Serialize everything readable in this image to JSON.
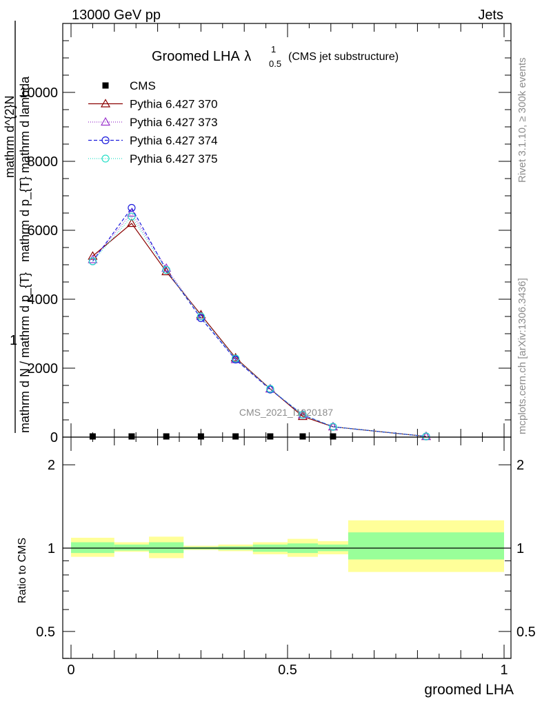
{
  "header": {
    "left": "13000 GeV pp",
    "right": "Jets"
  },
  "side_text": {
    "rivet": "Rivet 3.1.10, ≥ 300k events",
    "site": "mcplots.cern.ch [arXiv:1306.3436]"
  },
  "main_panel": {
    "title_main": "Groomed LHA",
    "title_lambda": "λ",
    "title_sup": "1",
    "title_sub": "0.5",
    "title_note": "(CMS jet substructure)",
    "watermark": "CMS_2021_I1920187",
    "ylabel_frac_one": "1",
    "ylabel_num": "mathrm d^{2}N",
    "ylabel_den": "mathrm d p_{T} mathrm d lambda",
    "ylabel_left": "mathrm d N / mathrm d p_{T}",
    "yticks": [
      "0",
      "2000",
      "4000",
      "6000",
      "8000",
      "10000"
    ]
  },
  "ratio_panel": {
    "ylabel": "Ratio to CMS",
    "yticks": [
      "0.5",
      "1",
      "2"
    ]
  },
  "x_axis": {
    "label": "groomed LHA",
    "ticks": [
      "0",
      "0.5",
      "1"
    ]
  },
  "legend": [
    {
      "label": "CMS"
    },
    {
      "label": "Pythia 6.427 370"
    },
    {
      "label": "Pythia 6.427 373"
    },
    {
      "label": "Pythia 6.427 374"
    },
    {
      "label": "Pythia 6.427 375"
    }
  ],
  "chart_data": {
    "type": "line",
    "x_label": "groomed LHA",
    "xlim": [
      0,
      1
    ],
    "ylim": [
      0,
      12000
    ],
    "ratio_ylim": [
      0.4,
      2.3
    ],
    "ratio_log_scale": true,
    "x": [
      0.05,
      0.14,
      0.22,
      0.3,
      0.38,
      0.46,
      0.535,
      0.605,
      0.82
    ],
    "cms": {
      "name": "CMS",
      "color": "#000000",
      "values": [
        10,
        10,
        10,
        10,
        10,
        10,
        10,
        10,
        10
      ],
      "ratio_bands": [
        {
          "x0": 0.0,
          "x1": 0.1,
          "yellow": [
            0.93,
            1.09
          ],
          "green": [
            0.96,
            1.05
          ]
        },
        {
          "x0": 0.1,
          "x1": 0.18,
          "yellow": [
            0.97,
            1.05
          ],
          "green": [
            0.98,
            1.03
          ]
        },
        {
          "x0": 0.18,
          "x1": 0.26,
          "yellow": [
            0.92,
            1.1
          ],
          "green": [
            0.96,
            1.05
          ]
        },
        {
          "x0": 0.26,
          "x1": 0.34,
          "yellow": [
            0.985,
            1.02
          ],
          "green": [
            0.99,
            1.01
          ]
        },
        {
          "x0": 0.34,
          "x1": 0.42,
          "yellow": [
            0.975,
            1.03
          ],
          "green": [
            0.985,
            1.015
          ]
        },
        {
          "x0": 0.42,
          "x1": 0.5,
          "yellow": [
            0.95,
            1.05
          ],
          "green": [
            0.97,
            1.03
          ]
        },
        {
          "x0": 0.5,
          "x1": 0.57,
          "yellow": [
            0.93,
            1.08
          ],
          "green": [
            0.96,
            1.04
          ]
        },
        {
          "x0": 0.57,
          "x1": 0.64,
          "yellow": [
            0.95,
            1.06
          ],
          "green": [
            0.975,
            1.03
          ]
        },
        {
          "x0": 0.64,
          "x1": 1.0,
          "yellow": [
            0.82,
            1.26
          ],
          "green": [
            0.91,
            1.14
          ]
        }
      ]
    },
    "series": [
      {
        "name": "Pythia 6.427 370",
        "color": "#8b0000",
        "dash": "",
        "marker": "triangle",
        "values": [
          5250,
          6200,
          4800,
          3550,
          2300,
          1400,
          600,
          300,
          20
        ]
      },
      {
        "name": "Pythia 6.427 373",
        "color": "#9932cc",
        "dash": "1,2",
        "marker": "triangle",
        "values": [
          5150,
          6500,
          4900,
          3500,
          2250,
          1400,
          650,
          300,
          20
        ]
      },
      {
        "name": "Pythia 6.427 374",
        "color": "#1c1cdc",
        "dash": "5,3",
        "marker": "circle",
        "values": [
          5100,
          6650,
          4850,
          3450,
          2250,
          1380,
          650,
          300,
          20
        ]
      },
      {
        "name": "Pythia 6.427 375",
        "color": "#2adfc8",
        "dash": "1,2",
        "marker": "circle",
        "values": [
          5100,
          6400,
          4850,
          3500,
          2280,
          1400,
          650,
          300,
          20
        ]
      }
    ]
  }
}
